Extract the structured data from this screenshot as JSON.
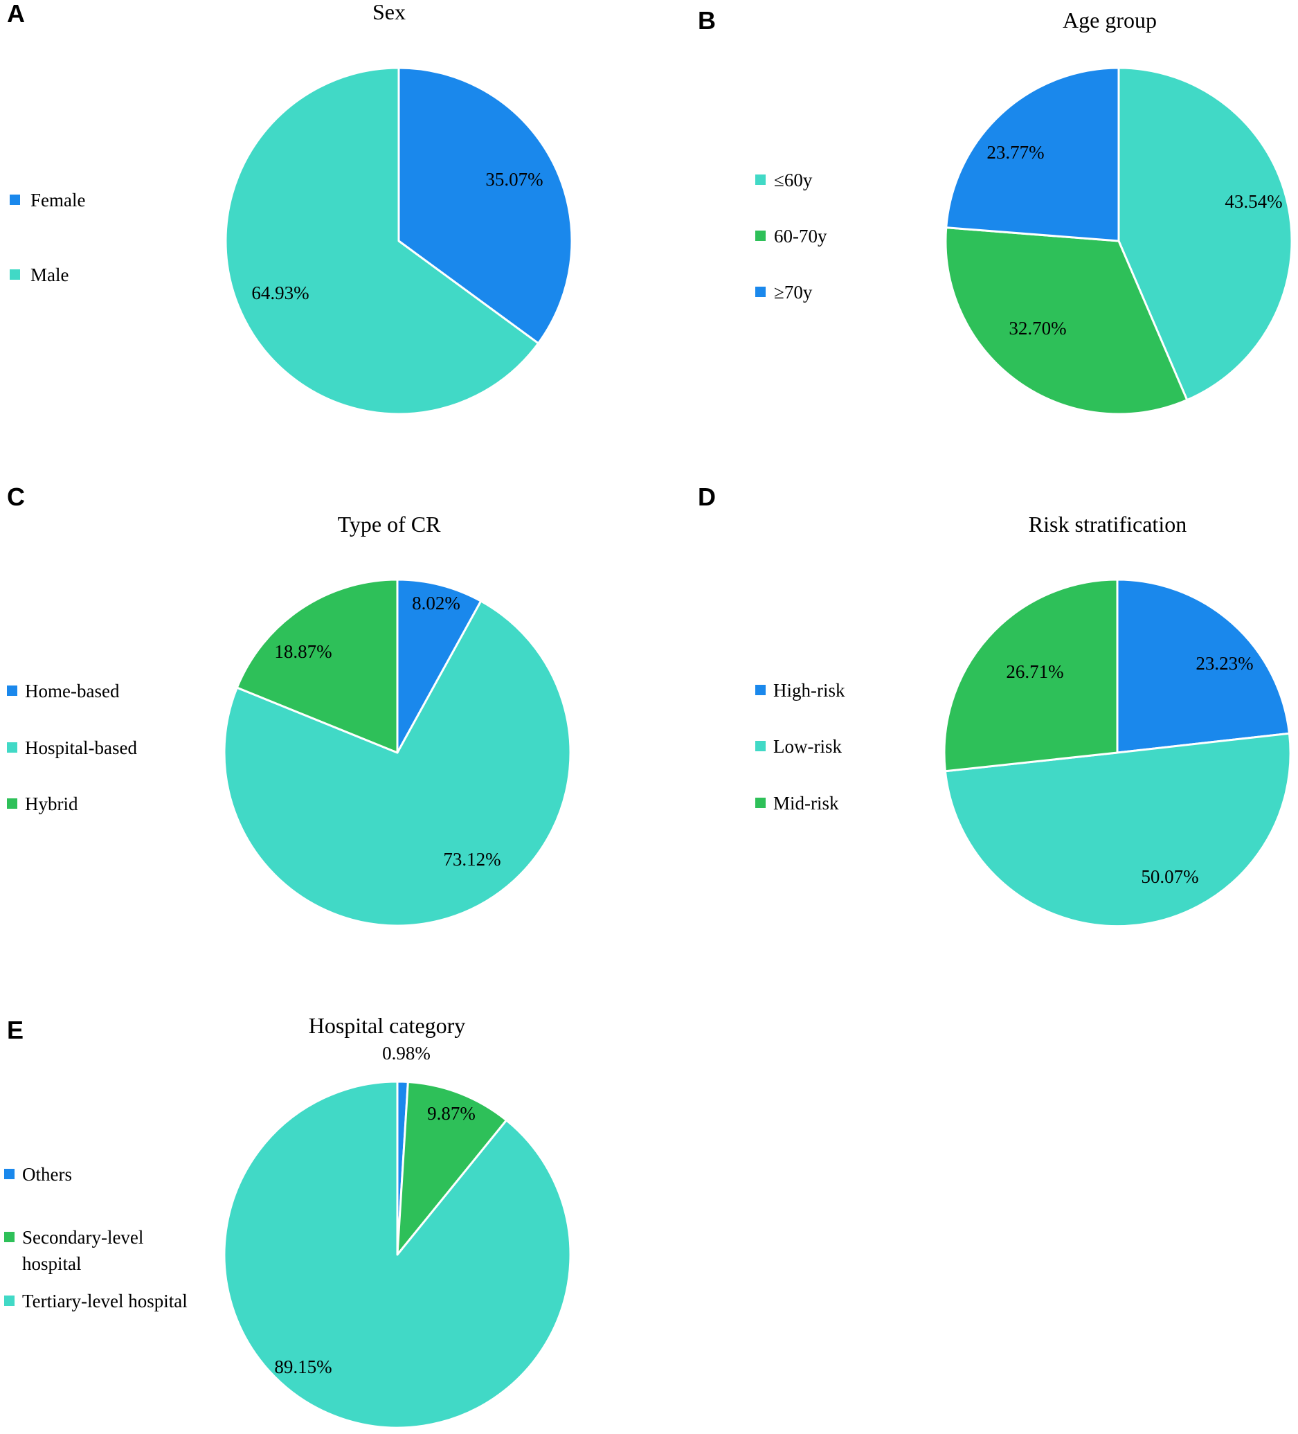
{
  "colors": {
    "blue": "#1a88ec",
    "teal": "#41d9c6",
    "green": "#2ec059",
    "slice_border": "#ffffff",
    "text": "#000000"
  },
  "chart_data": [
    {
      "panel": "A",
      "type": "pie",
      "title": "Sex",
      "slices": [
        {
          "label": "Female",
          "value": 35.07,
          "value_label": "35.07%",
          "color": "#1a88ec"
        },
        {
          "label": "Male",
          "value": 64.93,
          "value_label": "64.93%",
          "color": "#41d9c6"
        }
      ],
      "legend": [
        "Female",
        "Male"
      ],
      "legend_colors": [
        "#1a88ec",
        "#41d9c6"
      ],
      "legend_placement": "left",
      "start": "12 o'clock, clockwise"
    },
    {
      "panel": "B",
      "type": "pie",
      "title": "Age group",
      "slices": [
        {
          "label": "≤60y",
          "value": 43.54,
          "value_label": "43.54%",
          "color": "#41d9c6"
        },
        {
          "label": "60-70y",
          "value": 32.7,
          "value_label": "32.70%",
          "color": "#2ec059"
        },
        {
          "label": "≥70y",
          "value": 23.77,
          "value_label": "23.77%",
          "color": "#1a88ec"
        }
      ],
      "legend": [
        "≤60y",
        "60-70y",
        "≥70y"
      ],
      "legend_colors": [
        "#41d9c6",
        "#2ec059",
        "#1a88ec"
      ],
      "legend_placement": "left",
      "start": "12 o'clock, clockwise"
    },
    {
      "panel": "C",
      "type": "pie",
      "title": "Type of CR",
      "slices": [
        {
          "label": "Home-based",
          "value": 8.02,
          "value_label": "8.02%",
          "color": "#1a88ec"
        },
        {
          "label": "Hospital-based",
          "value": 73.12,
          "value_label": "73.12%",
          "color": "#41d9c6"
        },
        {
          "label": "Hybrid",
          "value": 18.87,
          "value_label": "18.87%",
          "color": "#2ec059"
        }
      ],
      "legend": [
        "Home-based",
        "Hospital-based",
        "Hybrid"
      ],
      "legend_colors": [
        "#1a88ec",
        "#41d9c6",
        "#2ec059"
      ],
      "legend_placement": "left",
      "start": "12 o'clock, clockwise"
    },
    {
      "panel": "D",
      "type": "pie",
      "title": "Risk stratification",
      "slices": [
        {
          "label": "High-risk",
          "value": 23.23,
          "value_label": "23.23%",
          "color": "#1a88ec"
        },
        {
          "label": "Low-risk",
          "value": 50.07,
          "value_label": "50.07%",
          "color": "#41d9c6"
        },
        {
          "label": "Mid-risk",
          "value": 26.71,
          "value_label": "26.71%",
          "color": "#2ec059"
        }
      ],
      "legend": [
        "High-risk",
        "Low-risk",
        "Mid-risk"
      ],
      "legend_colors": [
        "#1a88ec",
        "#41d9c6",
        "#2ec059"
      ],
      "legend_placement": "left",
      "start": "12 o'clock, clockwise"
    },
    {
      "panel": "E",
      "type": "pie",
      "title": "Hospital category",
      "slices": [
        {
          "label": "Others",
          "value": 0.98,
          "value_label": "0.98%",
          "color": "#1a88ec"
        },
        {
          "label": "Secondary-level hospital",
          "value": 9.87,
          "value_label": "9.87%",
          "color": "#2ec059"
        },
        {
          "label": "Tertiary-level hospital",
          "value": 89.15,
          "value_label": "89.15%",
          "color": "#41d9c6"
        }
      ],
      "legend": [
        "Others",
        "Secondary-level hospital",
        "Tertiary-level hospital"
      ],
      "legend_lines": [
        [
          "Others"
        ],
        [
          "Secondary-level",
          "hospital"
        ],
        [
          "Tertiary-level hospital"
        ]
      ],
      "legend_colors": [
        "#1a88ec",
        "#2ec059",
        "#41d9c6"
      ],
      "legend_placement": "left",
      "start": "12 o'clock, clockwise"
    }
  ]
}
